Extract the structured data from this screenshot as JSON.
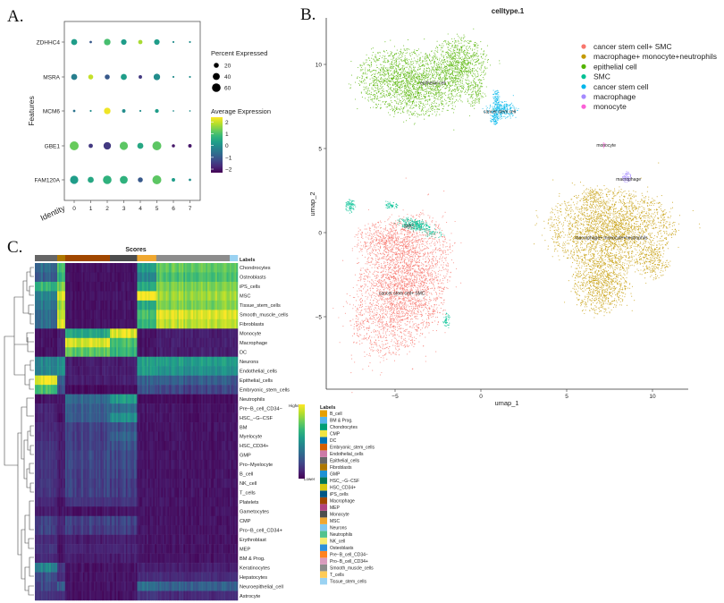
{
  "panels": {
    "a": "A.",
    "b": "B.",
    "c": "C."
  },
  "chart_data": [
    {
      "type": "scatter",
      "subtype": "dot-plot",
      "xlabel": "Identity",
      "ylabel": "Features",
      "categories": [
        "0",
        "1",
        "2",
        "3",
        "4",
        "5",
        "6",
        "7"
      ],
      "features": [
        "ZDHHC4",
        "MSRA",
        "MCM6",
        "GBE1",
        "FAM120A"
      ],
      "size_legend": {
        "title": "Percent Expressed",
        "values": [
          20,
          40,
          60
        ]
      },
      "color_legend": {
        "title": "Average Expression",
        "ticks": [
          2,
          1,
          0,
          -1,
          -2
        ],
        "range": [
          -2.3,
          2.4
        ],
        "colormap": "viridis"
      },
      "percent_expressed": [
        [
          30,
          5,
          35,
          25,
          15,
          25,
          3,
          3
        ],
        [
          30,
          20,
          20,
          30,
          10,
          35,
          3,
          3
        ],
        [
          5,
          3,
          35,
          10,
          3,
          12,
          2,
          2
        ],
        [
          65,
          15,
          45,
          55,
          30,
          65,
          8,
          10
        ],
        [
          55,
          30,
          60,
          50,
          20,
          65,
          10,
          5
        ]
      ],
      "average_expression": [
        [
          0.3,
          -1.0,
          1.0,
          0.3,
          1.8,
          0.3,
          0,
          0
        ],
        [
          -0.3,
          2.0,
          -1.0,
          0.3,
          -1.5,
          0,
          0,
          0
        ],
        [
          -0.5,
          0,
          2.3,
          0,
          0,
          0.3,
          0,
          0
        ],
        [
          1.3,
          -1.5,
          -1.5,
          1.2,
          0.5,
          1.2,
          -2,
          -2
        ],
        [
          0.3,
          0.5,
          0.7,
          0.7,
          -1.0,
          1.2,
          0.3,
          0
        ]
      ]
    },
    {
      "type": "scatter",
      "title": "celltype.1",
      "xlabel": "umap_1",
      "ylabel": "umap_2",
      "xlim": [
        -9,
        11.5
      ],
      "ylim": [
        -9.3,
        12.8
      ],
      "xticks": [
        -5,
        0,
        5,
        10
      ],
      "yticks": [
        -5,
        0,
        5,
        10
      ],
      "grid": false,
      "legend_position": "top-right",
      "series": [
        {
          "name": "cancer stem cell+ SMC",
          "color": "#F8766D",
          "label_at": [
            -4.6,
            -3.6
          ],
          "blobs": [
            [
              -4.6,
              -3.2,
              2.5,
              4.3,
              -20,
              3200
            ],
            [
              -5.5,
              -0.5,
              1.8,
              1.2,
              0,
              500
            ]
          ]
        },
        {
          "name": "macrophage+ monocyte+neutrophils",
          "color": "#C49A00",
          "label_at": [
            7.6,
            -0.3
          ],
          "blobs": [
            [
              7.6,
              0.2,
              3.6,
              2.3,
              0,
              2600
            ],
            [
              7.0,
              -3.0,
              1.6,
              1.9,
              0,
              900
            ],
            [
              10.0,
              -1.8,
              0.9,
              1.0,
              0,
              200
            ],
            [
              6.5,
              2.2,
              0.5,
              0.6,
              0,
              80
            ]
          ]
        },
        {
          "name": "epithelial cell",
          "color": "#53B400",
          "label_at": [
            -2.8,
            8.9
          ],
          "blobs": [
            [
              -4.2,
              8.9,
              3.0,
              1.9,
              -10,
              2000
            ],
            [
              -1.2,
              10.0,
              1.6,
              1.6,
              0,
              900
            ],
            [
              -0.3,
              8.2,
              0.6,
              0.7,
              0,
              120
            ]
          ]
        },
        {
          "name": "SMC",
          "color": "#00C094",
          "label_at": [
            -4.2,
            0.4
          ],
          "blobs": [
            [
              -3.9,
              0.5,
              0.9,
              0.35,
              -10,
              260
            ],
            [
              -7.6,
              1.6,
              0.3,
              0.4,
              0,
              90
            ],
            [
              -5.2,
              1.6,
              0.35,
              0.2,
              0,
              60
            ],
            [
              -2.0,
              -5.2,
              0.2,
              0.4,
              0,
              50
            ],
            [
              -2.9,
              0,
              0.7,
              0.3,
              -20,
              60
            ]
          ]
        },
        {
          "name": "cancer stem cell",
          "color": "#00B6EB",
          "label_at": [
            1.1,
            7.2
          ],
          "blobs": [
            [
              1.2,
              7.3,
              0.9,
              0.5,
              0,
              260
            ],
            [
              0.9,
              7.9,
              0.2,
              0.6,
              0,
              80
            ],
            [
              0.8,
              6.8,
              0.25,
              0.4,
              0,
              80
            ]
          ]
        },
        {
          "name": "macrophage",
          "color": "#A58AFF",
          "label_at": [
            8.6,
            3.2
          ],
          "blobs": [
            [
              8.5,
              3.3,
              0.25,
              0.35,
              0,
              70
            ]
          ]
        },
        {
          "name": "monocyte",
          "color": "#FB61D7",
          "label_at": [
            7.3,
            5.2
          ],
          "blobs": [
            [
              7.2,
              5.2,
              0.1,
              0.15,
              0,
              12
            ]
          ]
        }
      ]
    },
    {
      "type": "heatmap",
      "title": "Scores",
      "annotation_title": "Labels",
      "colorbar": {
        "high": "Higher",
        "low": "Lower",
        "colormap": "viridis"
      },
      "column_groups": [
        {
          "label": "Epithelial_cells",
          "color": "#666666",
          "columns": 14
        },
        {
          "label": "Fibroblasts",
          "color": "#AD7700",
          "columns": 5
        },
        {
          "label": "Macrophage",
          "color": "#A04700",
          "columns": 28
        },
        {
          "label": "Monocyte",
          "color": "#4D4D4D",
          "columns": 17
        },
        {
          "label": "MSC",
          "color": "#F0A830",
          "columns": 12
        },
        {
          "label": "Smooth_muscle_cells",
          "color": "#8C8C8C",
          "columns": 46
        },
        {
          "label": "Tissue_stem_cells",
          "color": "#9AD2F2",
          "columns": 5
        }
      ],
      "rows": [
        "Chondrocytes",
        "Osteoblasts",
        "iPS_cells",
        "MSC",
        "Tissue_stem_cells",
        "Smooth_muscle_cells",
        "Fibroblasts",
        "Monocyte",
        "Macrophage",
        "DC",
        "Neurons",
        "Endothelial_cells",
        "Epithelial_cells",
        "Embryonic_stem_cells",
        "Neutrophils",
        "Pre−B_cell_CD34−",
        "HSC_−G−CSF",
        "BM",
        "Myelocyte",
        "HSC_CD34+",
        "GMP",
        "Pro−Myelocyte",
        "B_cell",
        "NK_cell",
        "T_cells",
        "Platelets",
        "Gametocytes",
        "CMP",
        "Pro−B_cell_CD34+",
        "Erythroblast",
        "MEP",
        "BM & Prog.",
        "Keratinocytes",
        "Hepatocytes",
        "Neuroepithelial_cell",
        "Astrocyte"
      ],
      "values": [
        [
          0.35,
          0.7,
          0.05,
          0.05,
          0.55,
          0.75,
          0.75
        ],
        [
          0.3,
          0.65,
          0.05,
          0.05,
          0.45,
          0.7,
          0.7
        ],
        [
          0.65,
          0.8,
          0.05,
          0.05,
          0.6,
          0.8,
          0.8
        ],
        [
          0.45,
          0.95,
          0.05,
          0.05,
          1.0,
          0.85,
          0.85
        ],
        [
          0.4,
          0.85,
          0.05,
          0.05,
          0.6,
          0.8,
          0.8
        ],
        [
          0.35,
          0.9,
          0.05,
          0.05,
          0.7,
          0.95,
          0.95
        ],
        [
          0.35,
          0.95,
          0.05,
          0.05,
          0.65,
          0.9,
          0.9
        ],
        [
          0.05,
          0.1,
          0.6,
          0.95,
          0.05,
          0.08,
          0.08
        ],
        [
          0.05,
          0.1,
          0.95,
          0.7,
          0.05,
          0.08,
          0.08
        ],
        [
          0.05,
          0.1,
          0.75,
          0.65,
          0.05,
          0.08,
          0.08
        ],
        [
          0.45,
          0.5,
          0.08,
          0.08,
          0.55,
          0.55,
          0.55
        ],
        [
          0.45,
          0.5,
          0.08,
          0.08,
          0.55,
          0.5,
          0.5
        ],
        [
          0.98,
          0.3,
          0.08,
          0.08,
          0.3,
          0.3,
          0.25
        ],
        [
          0.7,
          0.25,
          0.03,
          0.03,
          0.25,
          0.2,
          0.2
        ],
        [
          0.05,
          0.05,
          0.35,
          0.55,
          0.03,
          0.03,
          0.03
        ],
        [
          0.1,
          0.05,
          0.3,
          0.35,
          0.05,
          0.05,
          0.05
        ],
        [
          0.1,
          0.05,
          0.3,
          0.5,
          0.05,
          0.05,
          0.05
        ],
        [
          0.12,
          0.08,
          0.2,
          0.25,
          0.05,
          0.05,
          0.05
        ],
        [
          0.12,
          0.08,
          0.2,
          0.3,
          0.05,
          0.05,
          0.05
        ],
        [
          0.15,
          0.08,
          0.2,
          0.25,
          0.05,
          0.05,
          0.05
        ],
        [
          0.15,
          0.08,
          0.22,
          0.22,
          0.05,
          0.05,
          0.05
        ],
        [
          0.15,
          0.08,
          0.22,
          0.22,
          0.05,
          0.05,
          0.05
        ],
        [
          0.15,
          0.08,
          0.2,
          0.2,
          0.05,
          0.05,
          0.05
        ],
        [
          0.15,
          0.08,
          0.2,
          0.18,
          0.05,
          0.05,
          0.05
        ],
        [
          0.15,
          0.08,
          0.2,
          0.18,
          0.05,
          0.05,
          0.05
        ],
        [
          0.12,
          0.05,
          0.15,
          0.15,
          0.05,
          0.05,
          0.05
        ],
        [
          0.08,
          0.05,
          0.05,
          0.05,
          0.05,
          0.05,
          0.05
        ],
        [
          0.2,
          0.1,
          0.2,
          0.2,
          0.05,
          0.05,
          0.05
        ],
        [
          0.2,
          0.1,
          0.18,
          0.18,
          0.05,
          0.05,
          0.05
        ],
        [
          0.12,
          0.05,
          0.08,
          0.08,
          0.05,
          0.05,
          0.05
        ],
        [
          0.15,
          0.05,
          0.1,
          0.1,
          0.05,
          0.05,
          0.05
        ],
        [
          0.12,
          0.05,
          0.08,
          0.08,
          0.05,
          0.05,
          0.05
        ],
        [
          0.45,
          0.15,
          0.05,
          0.05,
          0.08,
          0.08,
          0.08
        ],
        [
          0.25,
          0.12,
          0.05,
          0.05,
          0.12,
          0.12,
          0.12
        ],
        [
          0.2,
          0.3,
          0.05,
          0.05,
          0.35,
          0.3,
          0.3
        ],
        [
          0.15,
          0.12,
          0.05,
          0.05,
          0.15,
          0.12,
          0.12
        ]
      ],
      "label_legend": [
        {
          "label": "B_cell",
          "color": "#E69F00"
        },
        {
          "label": "BM & Prog.",
          "color": "#56B4E9"
        },
        {
          "label": "Chondrocytes",
          "color": "#009E73"
        },
        {
          "label": "CMP",
          "color": "#F0E442"
        },
        {
          "label": "DC",
          "color": "#0072B2"
        },
        {
          "label": "Embryonic_stem_cells",
          "color": "#D55E00"
        },
        {
          "label": "Endothelial_cells",
          "color": "#CC79A7"
        },
        {
          "label": "Epithelial_cells",
          "color": "#666666"
        },
        {
          "label": "Fibroblasts",
          "color": "#AD7700"
        },
        {
          "label": "GMP",
          "color": "#1C91D4"
        },
        {
          "label": "HSC_−G−CSF",
          "color": "#007756"
        },
        {
          "label": "HSC_CD34+",
          "color": "#D5C711"
        },
        {
          "label": "iPS_cells",
          "color": "#005685"
        },
        {
          "label": "Macrophage",
          "color": "#A04700"
        },
        {
          "label": "MEP",
          "color": "#B14380"
        },
        {
          "label": "Monocyte",
          "color": "#4D4D4D"
        },
        {
          "label": "MSC",
          "color": "#F0A830"
        },
        {
          "label": "Neurons",
          "color": "#80C7EF"
        },
        {
          "label": "Neutrophils",
          "color": "#52C28E"
        },
        {
          "label": "NK_cell",
          "color": "#F4EB71"
        },
        {
          "label": "Osteoblasts",
          "color": "#2E8FD8"
        },
        {
          "label": "Pre−B_cell_CD34−",
          "color": "#FF8320"
        },
        {
          "label": "Pro−B_cell_CD34+",
          "color": "#D99BBD"
        },
        {
          "label": "Smooth_muscle_cells",
          "color": "#8C8C8C"
        },
        {
          "label": "T_cells",
          "color": "#FFCB57"
        },
        {
          "label": "Tissue_stem_cells",
          "color": "#9AD2F2"
        }
      ]
    }
  ]
}
